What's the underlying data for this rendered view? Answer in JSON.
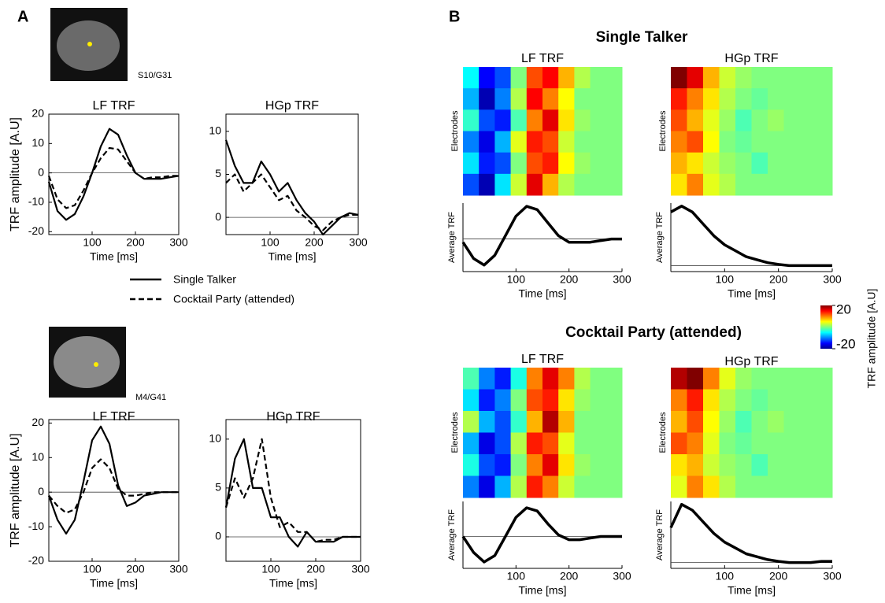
{
  "figure": {
    "panel_labels": [
      "A",
      "B"
    ],
    "sections": [
      "Single Talker",
      "Cocktail Party (attended)"
    ],
    "electrodes": [
      "S10/G31",
      "M4/G41"
    ],
    "colorbar": {
      "label": "TRF amplitude [A.U]",
      "lim": [
        -20,
        20
      ],
      "ticks": [
        20,
        -20
      ],
      "colormap": "jet"
    }
  },
  "chart_data": [
    {
      "type": "line",
      "title": "LF TRF",
      "xlabel": "Time [ms]",
      "ylabel": "TRF amplitude [A.U]",
      "xlim": [
        0,
        300
      ],
      "ylim": [
        -21,
        20
      ],
      "xticks": [
        100,
        200,
        300
      ],
      "yticks": [
        -20,
        -10,
        0,
        10,
        20
      ],
      "hline": 0,
      "x": [
        0,
        20,
        40,
        60,
        80,
        100,
        120,
        140,
        160,
        180,
        200,
        220,
        240,
        260,
        280,
        300
      ],
      "series": [
        {
          "name": "Single Talker",
          "color": "#000000",
          "linestyle": "solid",
          "values": [
            -3,
            -13,
            -16,
            -14,
            -8,
            0,
            9,
            15,
            13,
            6,
            0,
            -2,
            -2,
            -2,
            -1.5,
            -1
          ]
        },
        {
          "name": "Cocktail Party (attended)",
          "color": "#000000",
          "linestyle": "dashed",
          "values": [
            -1,
            -9,
            -12,
            -11,
            -6,
            0,
            5,
            8.5,
            8,
            4,
            0,
            -2,
            -1.5,
            -1.5,
            -1,
            -1
          ]
        }
      ]
    },
    {
      "type": "line",
      "title": "HGp TRF",
      "xlabel": "Time [ms]",
      "xlim": [
        0,
        300
      ],
      "ylim": [
        -2,
        12
      ],
      "xticks": [
        100,
        200,
        300
      ],
      "yticks": [
        0,
        5,
        10
      ],
      "hline": 0,
      "x": [
        0,
        20,
        40,
        60,
        80,
        100,
        120,
        140,
        160,
        180,
        200,
        220,
        240,
        260,
        280,
        300
      ],
      "series": [
        {
          "name": "Single Talker",
          "color": "#000000",
          "linestyle": "solid",
          "values": [
            9,
            6,
            4,
            4,
            6.5,
            5,
            3,
            4,
            2,
            0.5,
            -0.5,
            -2,
            -1,
            0,
            0.5,
            0.3
          ]
        },
        {
          "name": "Cocktail Party (attended)",
          "color": "#000000",
          "linestyle": "dashed",
          "values": [
            4,
            5,
            3,
            4,
            5,
            3.5,
            2,
            2.5,
            0.8,
            0,
            -1,
            -1.5,
            -0.5,
            0,
            0.3,
            0.3
          ]
        }
      ]
    },
    {
      "type": "line",
      "title": "LF TRF",
      "xlabel": "Time [ms]",
      "ylabel": "TRF amplitude [A.U]",
      "xlim": [
        0,
        300
      ],
      "ylim": [
        -20,
        21
      ],
      "xticks": [
        100,
        200,
        300
      ],
      "yticks": [
        -20,
        -10,
        0,
        10,
        20
      ],
      "hline": 0,
      "x": [
        0,
        20,
        40,
        60,
        80,
        100,
        120,
        140,
        160,
        180,
        200,
        220,
        240,
        260,
        280,
        300
      ],
      "series": [
        {
          "name": "Single Talker",
          "color": "#000000",
          "linestyle": "solid",
          "values": [
            -1,
            -8,
            -12,
            -8,
            3,
            15,
            19,
            14,
            2,
            -4,
            -3,
            -1,
            -0.5,
            0,
            0,
            0
          ]
        },
        {
          "name": "Cocktail Party (attended)",
          "color": "#000000",
          "linestyle": "dashed",
          "values": [
            -1,
            -4,
            -6,
            -5,
            0,
            7,
            9.5,
            7,
            1,
            -1,
            -1,
            -0.5,
            0,
            0,
            0,
            0
          ]
        }
      ]
    },
    {
      "type": "line",
      "title": "HGp TRF",
      "xlabel": "Time [ms]",
      "xlim": [
        0,
        300
      ],
      "ylim": [
        -2.5,
        12
      ],
      "xticks": [
        100,
        200,
        300
      ],
      "yticks": [
        0,
        5,
        10
      ],
      "hline": 0,
      "x": [
        0,
        20,
        40,
        60,
        80,
        100,
        120,
        140,
        160,
        180,
        200,
        220,
        240,
        260,
        280,
        300
      ],
      "series": [
        {
          "name": "Single Talker",
          "color": "#000000",
          "linestyle": "solid",
          "values": [
            3,
            8,
            10,
            5,
            5,
            2,
            2,
            0,
            -1,
            0.5,
            -0.5,
            -0.5,
            -0.5,
            0,
            0,
            0
          ]
        },
        {
          "name": "Cocktail Party (attended)",
          "color": "#000000",
          "linestyle": "dashed",
          "values": [
            3,
            6,
            4,
            6,
            10,
            4,
            1,
            1.5,
            0.5,
            0.5,
            -0.5,
            -0.3,
            -0.3,
            0,
            0,
            0
          ]
        }
      ]
    },
    {
      "type": "heatmap",
      "title": "LF TRF",
      "ylabel": "Electrodes",
      "values": [
        [
          -5,
          -15,
          -12,
          0,
          12,
          15,
          8,
          2,
          0,
          0
        ],
        [
          -8,
          -18,
          -10,
          2,
          15,
          10,
          5,
          0,
          0,
          0
        ],
        [
          -3,
          -12,
          -14,
          -2,
          10,
          16,
          6,
          1,
          0,
          0
        ],
        [
          -10,
          -16,
          -8,
          4,
          14,
          12,
          3,
          0,
          0,
          0
        ],
        [
          -6,
          -14,
          -12,
          0,
          12,
          14,
          5,
          1,
          0,
          0
        ],
        [
          -12,
          -18,
          -6,
          3,
          16,
          8,
          2,
          0,
          0,
          0
        ]
      ]
    },
    {
      "type": "heatmap",
      "title": "HGp TRF",
      "ylabel": "Electrodes",
      "values": [
        [
          20,
          16,
          8,
          3,
          1,
          0,
          0,
          0,
          0,
          0
        ],
        [
          14,
          10,
          6,
          2,
          0,
          -1,
          0,
          0,
          0,
          0
        ],
        [
          12,
          8,
          4,
          1,
          -2,
          0,
          1,
          0,
          0,
          0
        ],
        [
          10,
          12,
          5,
          0,
          -1,
          0,
          0,
          0,
          0,
          0
        ],
        [
          8,
          6,
          3,
          1,
          0,
          -2,
          0,
          0,
          0,
          0
        ],
        [
          6,
          10,
          4,
          2,
          0,
          0,
          0,
          0,
          0,
          0
        ]
      ]
    },
    {
      "type": "line",
      "ylabel": "Average TRF",
      "xlabel": "Time [ms]",
      "xlim": [
        0,
        300
      ],
      "ylim": [
        -1,
        1.1
      ],
      "xticks": [
        100,
        200,
        300
      ],
      "hline": 0,
      "x": [
        0,
        20,
        40,
        60,
        80,
        100,
        120,
        140,
        160,
        180,
        200,
        220,
        240,
        260,
        280,
        300
      ],
      "series": [
        {
          "color": "#000000",
          "linestyle": "solid",
          "values": [
            -0.1,
            -0.6,
            -0.8,
            -0.5,
            0.1,
            0.7,
            1.0,
            0.9,
            0.5,
            0.1,
            -0.1,
            -0.1,
            -0.1,
            -0.05,
            0,
            0
          ]
        }
      ]
    },
    {
      "type": "line",
      "ylabel": "Average TRF",
      "xlabel": "Time [ms]",
      "xlim": [
        0,
        300
      ],
      "ylim": [
        -0.1,
        1.05
      ],
      "xticks": [
        100,
        200,
        300
      ],
      "hline": 0,
      "x": [
        0,
        20,
        40,
        60,
        80,
        100,
        120,
        140,
        160,
        180,
        200,
        220,
        240,
        260,
        280,
        300
      ],
      "series": [
        {
          "color": "#000000",
          "linestyle": "solid",
          "values": [
            0.9,
            1.0,
            0.9,
            0.7,
            0.5,
            0.35,
            0.25,
            0.15,
            0.1,
            0.05,
            0.02,
            0,
            0,
            0,
            0,
            0
          ]
        }
      ]
    },
    {
      "type": "heatmap",
      "title": "LF TRF",
      "ylabel": "Electrodes",
      "values": [
        [
          -2,
          -10,
          -14,
          -4,
          10,
          16,
          10,
          2,
          0,
          0
        ],
        [
          -6,
          -14,
          -10,
          0,
          12,
          14,
          6,
          1,
          0,
          0
        ],
        [
          2,
          -8,
          -12,
          -3,
          8,
          18,
          8,
          0,
          0,
          0
        ],
        [
          -8,
          -16,
          -12,
          2,
          14,
          12,
          4,
          0,
          0,
          0
        ],
        [
          -4,
          -12,
          -14,
          0,
          10,
          16,
          6,
          1,
          0,
          0
        ],
        [
          -10,
          -16,
          -8,
          2,
          14,
          10,
          3,
          0,
          0,
          0
        ]
      ]
    },
    {
      "type": "heatmap",
      "title": "HGp TRF",
      "ylabel": "Electrodes",
      "values": [
        [
          18,
          20,
          10,
          4,
          1,
          0,
          0,
          0,
          0,
          0
        ],
        [
          10,
          14,
          6,
          2,
          0,
          -1,
          0,
          0,
          0,
          0
        ],
        [
          8,
          12,
          5,
          1,
          -2,
          0,
          1,
          0,
          0,
          0
        ],
        [
          12,
          10,
          4,
          0,
          -1,
          0,
          0,
          0,
          0,
          0
        ],
        [
          6,
          8,
          3,
          1,
          0,
          -2,
          0,
          0,
          0,
          0
        ],
        [
          4,
          10,
          6,
          2,
          0,
          0,
          0,
          0,
          0,
          0
        ]
      ]
    },
    {
      "type": "line",
      "ylabel": "Average TRF",
      "xlabel": "Time [ms]",
      "xlim": [
        0,
        300
      ],
      "ylim": [
        -1,
        1.1
      ],
      "xticks": [
        100,
        200,
        300
      ],
      "hline": 0,
      "x": [
        0,
        20,
        40,
        60,
        80,
        100,
        120,
        140,
        160,
        180,
        200,
        220,
        240,
        260,
        280,
        300
      ],
      "series": [
        {
          "color": "#000000",
          "linestyle": "solid",
          "values": [
            0,
            -0.5,
            -0.8,
            -0.6,
            0,
            0.6,
            0.9,
            0.8,
            0.4,
            0.05,
            -0.1,
            -0.1,
            -0.05,
            0,
            0,
            0
          ]
        }
      ]
    },
    {
      "type": "line",
      "ylabel": "Average TRF",
      "xlabel": "Time [ms]",
      "xlim": [
        0,
        300
      ],
      "ylim": [
        -0.1,
        1.05
      ],
      "xticks": [
        100,
        200,
        300
      ],
      "hline": 0,
      "x": [
        0,
        20,
        40,
        60,
        80,
        100,
        120,
        140,
        160,
        180,
        200,
        220,
        240,
        260,
        280,
        300
      ],
      "series": [
        {
          "color": "#000000",
          "linestyle": "solid",
          "values": [
            0.6,
            1.0,
            0.9,
            0.7,
            0.5,
            0.35,
            0.25,
            0.15,
            0.1,
            0.05,
            0.02,
            0,
            0,
            0,
            0.02,
            0.02
          ]
        }
      ]
    }
  ]
}
